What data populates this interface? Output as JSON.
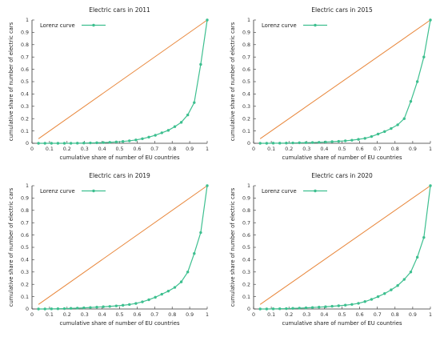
{
  "colors": {
    "lorenz": "#3dbf8f",
    "equality": "#e8863a",
    "axis": "#333333"
  },
  "chart_data": [
    {
      "type": "line",
      "title": "Electric cars in 2011",
      "xlabel": "cumulative share of number of EU countries",
      "ylabel": "cumulative share of number of electric cars",
      "xticks": [
        "0",
        "0.1",
        "0.2",
        "0.3",
        "0.4",
        "0.5",
        "0.6",
        "0.7",
        "0.8",
        "0.9",
        "1"
      ],
      "yticks": [
        "0",
        "0.1",
        "0.2",
        "0.3",
        "0.4",
        "0.5",
        "0.6",
        "0.7",
        "0.8",
        "0.9",
        "1"
      ],
      "xlim": [
        0,
        1
      ],
      "ylim": [
        0,
        1
      ],
      "legend": {
        "label": "Lorenz curve",
        "position": "top-left"
      },
      "series": [
        {
          "name": "Lorenz curve",
          "x": [
            0.037,
            0.074,
            0.111,
            0.148,
            0.185,
            0.222,
            0.259,
            0.296,
            0.333,
            0.37,
            0.407,
            0.444,
            0.481,
            0.519,
            0.556,
            0.593,
            0.63,
            0.667,
            0.704,
            0.741,
            0.778,
            0.815,
            0.852,
            0.889,
            0.926,
            0.963,
            1.0
          ],
          "y": [
            0.0,
            0.0,
            0.0,
            0.0,
            0.0,
            0.0,
            0.001,
            0.002,
            0.003,
            0.004,
            0.006,
            0.008,
            0.011,
            0.015,
            0.02,
            0.027,
            0.037,
            0.05,
            0.065,
            0.085,
            0.105,
            0.135,
            0.17,
            0.23,
            0.33,
            0.64,
            1.0
          ]
        },
        {
          "x": [
            0.037,
            1.0
          ],
          "y": [
            0.037,
            1.0
          ]
        }
      ]
    },
    {
      "type": "line",
      "title": "Electric cars in 2015",
      "xlabel": "cumulative share of number of EU countries",
      "ylabel": "cumulative share of number of electric cars",
      "xticks": [
        "0",
        "0.1",
        "0.2",
        "0.3",
        "0.4",
        "0.5",
        "0.6",
        "0.7",
        "0.8",
        "0.9",
        "1"
      ],
      "yticks": [
        "0",
        "0.1",
        "0.2",
        "0.3",
        "0.4",
        "0.5",
        "0.6",
        "0.7",
        "0.8",
        "0.9",
        "1"
      ],
      "xlim": [
        0,
        1
      ],
      "ylim": [
        0,
        1
      ],
      "legend": {
        "label": "Lorenz curve",
        "position": "top-left"
      },
      "series": [
        {
          "name": "Lorenz curve",
          "x": [
            0.037,
            0.074,
            0.111,
            0.148,
            0.185,
            0.222,
            0.259,
            0.296,
            0.333,
            0.37,
            0.407,
            0.444,
            0.481,
            0.519,
            0.556,
            0.593,
            0.63,
            0.667,
            0.704,
            0.741,
            0.778,
            0.815,
            0.852,
            0.889,
            0.926,
            0.963,
            1.0
          ],
          "y": [
            0.0,
            0.0,
            0.001,
            0.001,
            0.002,
            0.003,
            0.004,
            0.005,
            0.006,
            0.008,
            0.01,
            0.013,
            0.016,
            0.02,
            0.025,
            0.032,
            0.04,
            0.055,
            0.075,
            0.095,
            0.12,
            0.15,
            0.2,
            0.34,
            0.5,
            0.7,
            1.0
          ]
        },
        {
          "x": [
            0.037,
            1.0
          ],
          "y": [
            0.037,
            1.0
          ]
        }
      ]
    },
    {
      "type": "line",
      "title": "Electric cars in 2019",
      "xlabel": "cumulative share of number of EU countries",
      "ylabel": "cumulative share of number of electric cars",
      "xticks": [
        "0",
        "0.1",
        "0.2",
        "0.3",
        "0.4",
        "0.5",
        "0.6",
        "0.7",
        "0.8",
        "0.9",
        "1"
      ],
      "yticks": [
        "0",
        "0.1",
        "0.2",
        "0.3",
        "0.4",
        "0.5",
        "0.6",
        "0.7",
        "0.8",
        "0.9",
        "1"
      ],
      "xlim": [
        0,
        1
      ],
      "ylim": [
        0,
        1
      ],
      "legend": {
        "label": "Lorenz curve",
        "position": "top-left"
      },
      "series": [
        {
          "name": "Lorenz curve",
          "x": [
            0.037,
            0.074,
            0.111,
            0.148,
            0.185,
            0.222,
            0.259,
            0.296,
            0.333,
            0.37,
            0.407,
            0.444,
            0.481,
            0.519,
            0.556,
            0.593,
            0.63,
            0.667,
            0.704,
            0.741,
            0.778,
            0.815,
            0.852,
            0.889,
            0.926,
            0.963,
            1.0
          ],
          "y": [
            0.0,
            0.0,
            0.001,
            0.002,
            0.003,
            0.005,
            0.007,
            0.009,
            0.012,
            0.015,
            0.018,
            0.021,
            0.025,
            0.03,
            0.036,
            0.045,
            0.058,
            0.075,
            0.095,
            0.12,
            0.145,
            0.175,
            0.22,
            0.3,
            0.45,
            0.62,
            1.0
          ]
        },
        {
          "x": [
            0.037,
            1.0
          ],
          "y": [
            0.037,
            1.0
          ]
        }
      ]
    },
    {
      "type": "line",
      "title": "Electric cars in 2020",
      "xlabel": "cumulative share of number of EU countries",
      "ylabel": "cumulative share of number of electric cars",
      "xticks": [
        "0",
        "0.1",
        "0.2",
        "0.3",
        "0.4",
        "0.5",
        "0.6",
        "0.7",
        "0.8",
        "0.9",
        "1"
      ],
      "yticks": [
        "0",
        "0.1",
        "0.2",
        "0.3",
        "0.4",
        "0.5",
        "0.6",
        "0.7",
        "0.8",
        "0.9",
        "1"
      ],
      "xlim": [
        0,
        1
      ],
      "ylim": [
        0,
        1
      ],
      "legend": {
        "label": "Lorenz curve",
        "position": "top-left"
      },
      "series": [
        {
          "name": "Lorenz curve",
          "x": [
            0.037,
            0.074,
            0.111,
            0.148,
            0.185,
            0.222,
            0.259,
            0.296,
            0.333,
            0.37,
            0.407,
            0.444,
            0.481,
            0.519,
            0.556,
            0.593,
            0.63,
            0.667,
            0.704,
            0.741,
            0.778,
            0.815,
            0.852,
            0.889,
            0.926,
            0.963,
            1.0
          ],
          "y": [
            0.0,
            0.0,
            0.001,
            0.002,
            0.003,
            0.005,
            0.007,
            0.009,
            0.012,
            0.015,
            0.018,
            0.022,
            0.026,
            0.031,
            0.037,
            0.046,
            0.06,
            0.078,
            0.1,
            0.125,
            0.155,
            0.19,
            0.24,
            0.3,
            0.42,
            0.58,
            1.0
          ]
        },
        {
          "x": [
            0.037,
            1.0
          ],
          "y": [
            0.037,
            1.0
          ]
        }
      ]
    }
  ]
}
